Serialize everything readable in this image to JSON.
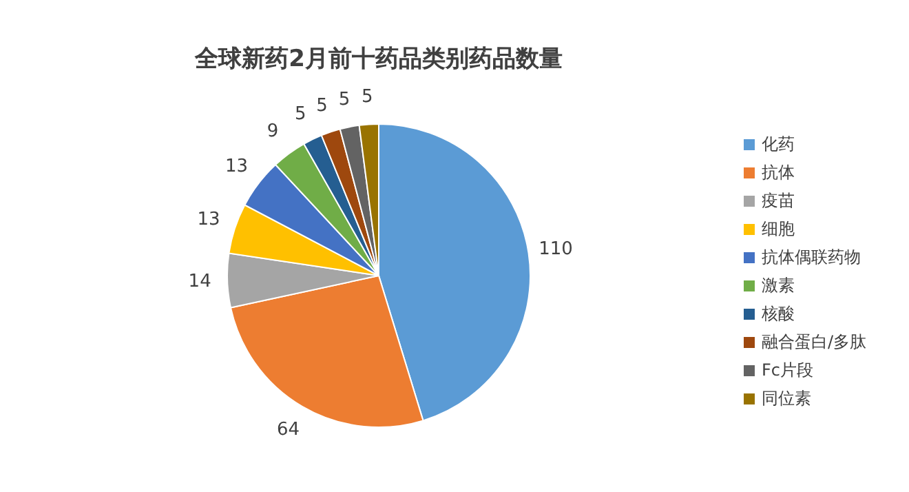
{
  "chart_data": {
    "type": "pie",
    "title": "全球新药2月前十药品类别药品数量",
    "categories": [
      "化药",
      "抗体",
      "疫苗",
      "细胞",
      "抗体偶联药物",
      "激素",
      "核酸",
      "融合蛋白/多肽",
      "Fc片段",
      "同位素"
    ],
    "values": [
      110,
      64,
      14,
      13,
      13,
      9,
      5,
      5,
      5,
      5
    ],
    "colors": [
      "#5b9bd5",
      "#ed7d31",
      "#a5a5a5",
      "#ffc000",
      "#4472c4",
      "#70ad47",
      "#255e91",
      "#9e480e",
      "#636363",
      "#997300"
    ],
    "data_labels": true,
    "legend": "right"
  }
}
